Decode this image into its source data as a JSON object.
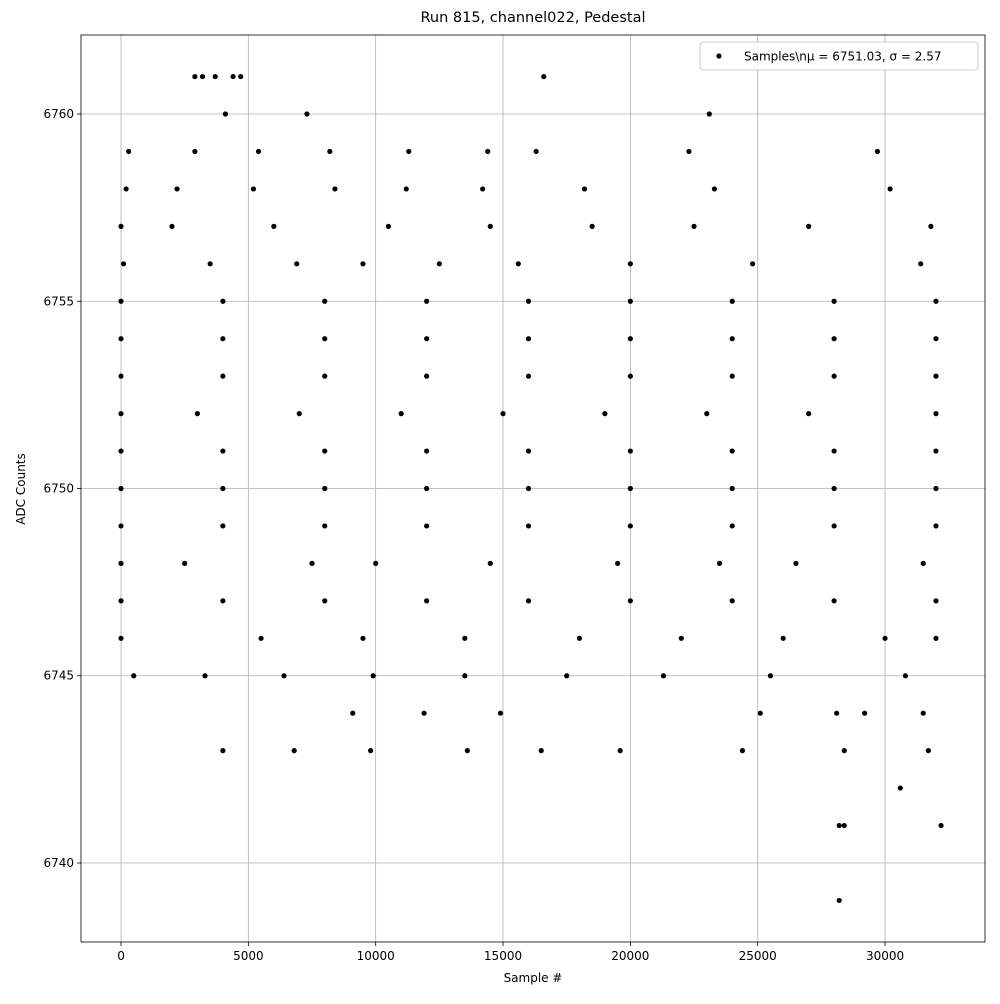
{
  "chart_data": {
    "type": "scatter",
    "title": "Run 815, channel022, Pedestal",
    "x_label": "Sample #",
    "y_label": "ADC Counts",
    "xlim": [
      -1571,
      33925
    ],
    "ylim": [
      6737.89,
      6762.11
    ],
    "xticks": [
      0,
      5000,
      10000,
      15000,
      20000,
      25000,
      30000
    ],
    "yticks": [
      6740,
      6745,
      6750,
      6755,
      6760
    ],
    "grid": true,
    "legend": "upper right",
    "series": [
      {
        "name": "Samples\\nμ = 6751.03, σ = 2.57",
        "color": "#000000",
        "x": [
          0,
          4000,
          8000,
          12000,
          16000,
          20000,
          24000,
          28000,
          32000,
          0,
          4000,
          8000,
          12000,
          16000,
          20000,
          24000,
          28000,
          32000,
          0,
          4000,
          8000,
          12000,
          16000,
          20000,
          24000,
          28000,
          32000,
          0,
          4000,
          8000,
          12000,
          16000,
          20000,
          24000,
          28000,
          32000,
          0,
          4000,
          8000,
          12000,
          16000,
          20000,
          24000,
          28000,
          32000,
          0,
          4000,
          8000,
          12000,
          16000,
          20000,
          24000,
          28000,
          32000,
          0,
          4000,
          8000,
          12000,
          16000,
          20000,
          24000,
          28000,
          32000,
          0,
          3000,
          7000,
          11000,
          15000,
          19000,
          23000,
          27000,
          32000,
          0,
          5500,
          9500,
          13500,
          18000,
          22000,
          26000,
          30000,
          32000,
          0,
          2500,
          7500,
          10000,
          14500,
          19500,
          23500,
          26500,
          31500,
          0,
          2000,
          6000,
          10500,
          14500,
          18500,
          22500,
          27000,
          31800,
          100,
          3500,
          6900,
          9500,
          12500,
          15600,
          20000,
          24800,
          31400,
          200,
          2200,
          5200,
          8400,
          11200,
          14200,
          18200,
          23300,
          30200,
          500,
          3300,
          6400,
          9900,
          13500,
          17500,
          21300,
          25500,
          30800,
          300,
          2900,
          5400,
          8200,
          11300,
          14400,
          16300,
          22300,
          29700,
          4000,
          6800,
          9800,
          13600,
          16500,
          19600,
          24400,
          28400,
          31700,
          2900,
          3200,
          3700,
          4400,
          4700,
          16600,
          4100,
          7300,
          23100,
          9100,
          11900,
          14900,
          25100,
          28100,
          29200,
          31500,
          30600,
          28200,
          28400,
          32200,
          28200
        ],
        "values": [
          6755,
          6755,
          6755,
          6755,
          6755,
          6755,
          6755,
          6755,
          6755,
          6754,
          6754,
          6754,
          6754,
          6754,
          6754,
          6754,
          6754,
          6754,
          6753,
          6753,
          6753,
          6753,
          6753,
          6753,
          6753,
          6753,
          6753,
          6751,
          6751,
          6751,
          6751,
          6751,
          6751,
          6751,
          6751,
          6751,
          6750,
          6750,
          6750,
          6750,
          6750,
          6750,
          6750,
          6750,
          6750,
          6749,
          6749,
          6749,
          6749,
          6749,
          6749,
          6749,
          6749,
          6749,
          6747,
          6747,
          6747,
          6747,
          6747,
          6747,
          6747,
          6747,
          6747,
          6752,
          6752,
          6752,
          6752,
          6752,
          6752,
          6752,
          6752,
          6752,
          6746,
          6746,
          6746,
          6746,
          6746,
          6746,
          6746,
          6746,
          6746,
          6748,
          6748,
          6748,
          6748,
          6748,
          6748,
          6748,
          6748,
          6748,
          6757,
          6757,
          6757,
          6757,
          6757,
          6757,
          6757,
          6757,
          6757,
          6756,
          6756,
          6756,
          6756,
          6756,
          6756,
          6756,
          6756,
          6756,
          6758,
          6758,
          6758,
          6758,
          6758,
          6758,
          6758,
          6758,
          6758,
          6745,
          6745,
          6745,
          6745,
          6745,
          6745,
          6745,
          6745,
          6745,
          6759,
          6759,
          6759,
          6759,
          6759,
          6759,
          6759,
          6759,
          6759,
          6743,
          6743,
          6743,
          6743,
          6743,
          6743,
          6743,
          6743,
          6743,
          6761,
          6761,
          6761,
          6761,
          6761,
          6761,
          6760,
          6760,
          6760,
          6744,
          6744,
          6744,
          6744,
          6744,
          6744,
          6744,
          6742,
          6741,
          6741,
          6741,
          6739
        ]
      }
    ]
  }
}
